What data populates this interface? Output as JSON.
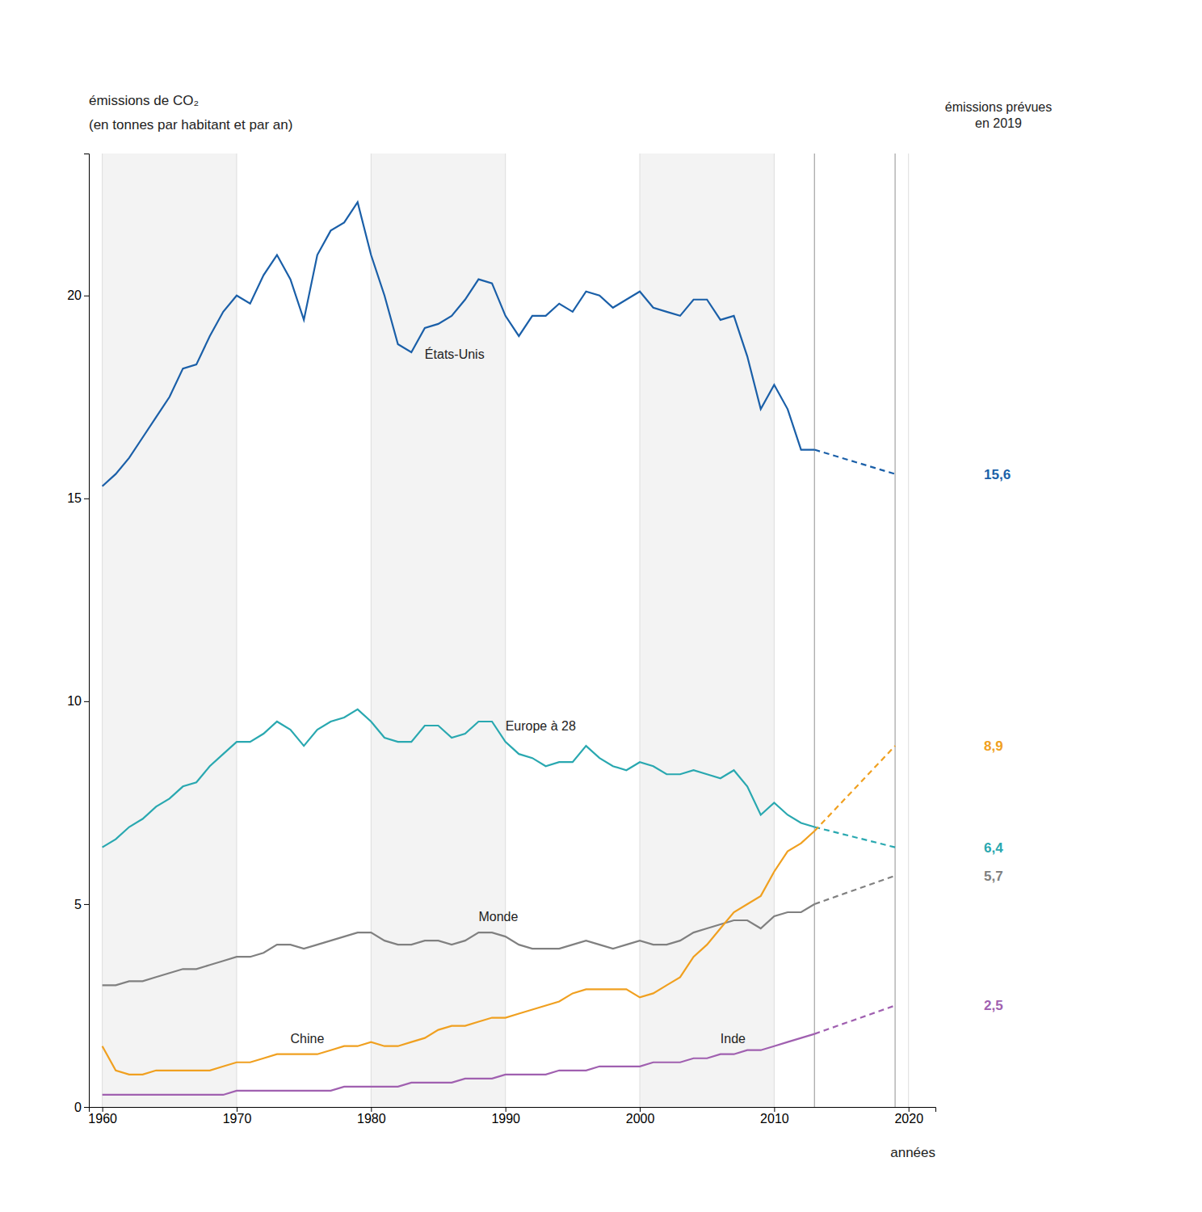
{
  "chart_data": {
    "type": "line",
    "ylabel": [
      "émissions de CO₂",
      "(en tonnes par habitant et par an)"
    ],
    "xlabel": "années",
    "annotation": "émissions prévues\nen 2019",
    "xlim": [
      1959,
      2022
    ],
    "xticks": [
      1960,
      1970,
      1980,
      1990,
      2000,
      2010,
      2020
    ],
    "ylim": [
      0,
      23.5
    ],
    "yticks": [
      0,
      5,
      10,
      15,
      20
    ],
    "grid": "x",
    "vlines": [
      2013,
      2019
    ],
    "x": [
      1960,
      1961,
      1962,
      1963,
      1964,
      1965,
      1966,
      1967,
      1968,
      1969,
      1970,
      1971,
      1972,
      1973,
      1974,
      1975,
      1976,
      1977,
      1978,
      1979,
      1980,
      1981,
      1982,
      1983,
      1984,
      1985,
      1986,
      1987,
      1988,
      1989,
      1990,
      1991,
      1992,
      1993,
      1994,
      1995,
      1996,
      1997,
      1998,
      1999,
      2000,
      2001,
      2002,
      2003,
      2004,
      2005,
      2006,
      2007,
      2008,
      2009,
      2010,
      2011,
      2012,
      2013
    ],
    "series": [
      {
        "name": "États-Unis",
        "color": "#1a5fa8",
        "values": [
          15.3,
          15.6,
          16.0,
          16.5,
          17.0,
          17.5,
          18.2,
          18.3,
          19.0,
          19.6,
          20.0,
          19.8,
          20.5,
          21.0,
          20.4,
          19.4,
          21.0,
          21.6,
          21.8,
          22.3,
          21.0,
          20.0,
          18.8,
          18.6,
          19.2,
          19.3,
          19.5,
          19.9,
          20.4,
          20.3,
          19.5,
          19.0,
          19.5,
          19.5,
          19.8,
          19.6,
          20.1,
          20.0,
          19.7,
          19.9,
          20.1,
          19.7,
          19.6,
          19.5,
          19.9,
          19.9,
          19.4,
          19.5,
          18.5,
          17.2,
          17.8,
          17.2,
          16.2,
          16.2
        ],
        "forecast": {
          "x": [
            2013,
            2019
          ],
          "values": [
            16.2,
            15.6
          ],
          "value_labels": [
            null,
            "15,6"
          ],
          "line_style": "dashed"
        }
      },
      {
        "name": "Europe à 28",
        "color": "#29a8b0",
        "values": [
          6.4,
          6.6,
          6.9,
          7.1,
          7.4,
          7.6,
          7.9,
          8.0,
          8.4,
          8.7,
          9.0,
          9.0,
          9.2,
          9.5,
          9.3,
          8.9,
          9.3,
          9.5,
          9.6,
          9.8,
          9.5,
          9.1,
          9.0,
          9.0,
          9.4,
          9.4,
          9.1,
          9.2,
          9.5,
          9.5,
          9.0,
          8.7,
          8.6,
          8.4,
          8.5,
          8.5,
          8.9,
          8.6,
          8.4,
          8.3,
          8.5,
          8.4,
          8.2,
          8.2,
          8.3,
          8.2,
          8.1,
          8.3,
          7.9,
          7.2,
          7.5,
          7.2,
          7.0,
          6.9
        ],
        "forecast": {
          "x": [
            2013,
            2019
          ],
          "values": [
            6.9,
            6.4
          ],
          "value_labels": [
            null,
            "6,4"
          ],
          "line_style": "dashed"
        }
      },
      {
        "name": "Monde",
        "color": "#808080",
        "values": [
          3.0,
          3.0,
          3.1,
          3.1,
          3.2,
          3.3,
          3.4,
          3.4,
          3.5,
          3.6,
          3.7,
          3.7,
          3.8,
          4.0,
          4.0,
          3.9,
          4.0,
          4.1,
          4.2,
          4.3,
          4.3,
          4.1,
          4.0,
          4.0,
          4.1,
          4.1,
          4.0,
          4.1,
          4.3,
          4.3,
          4.2,
          4.0,
          3.9,
          3.9,
          3.9,
          4.0,
          4.1,
          4.0,
          3.9,
          4.0,
          4.1,
          4.0,
          4.0,
          4.1,
          4.3,
          4.4,
          4.5,
          4.6,
          4.6,
          4.4,
          4.7,
          4.8,
          4.8,
          5.0
        ],
        "forecast": {
          "x": [
            2013,
            2019
          ],
          "values": [
            5.0,
            5.7
          ],
          "value_labels": [
            null,
            "5,7"
          ],
          "line_style": "dashed"
        }
      },
      {
        "name": "Chine",
        "color": "#f0a020",
        "values": [
          1.5,
          0.9,
          0.8,
          0.8,
          0.9,
          0.9,
          0.9,
          0.9,
          0.9,
          1.0,
          1.1,
          1.1,
          1.2,
          1.3,
          1.3,
          1.3,
          1.3,
          1.4,
          1.5,
          1.5,
          1.6,
          1.5,
          1.5,
          1.6,
          1.7,
          1.9,
          2.0,
          2.0,
          2.1,
          2.2,
          2.2,
          2.3,
          2.4,
          2.5,
          2.6,
          2.8,
          2.9,
          2.9,
          2.9,
          2.9,
          2.7,
          2.8,
          3.0,
          3.2,
          3.7,
          4.0,
          4.4,
          4.8,
          5.0,
          5.2,
          5.8,
          6.3,
          6.5,
          6.8
        ],
        "forecast": {
          "x": [
            2013,
            2019
          ],
          "values": [
            6.8,
            8.9
          ],
          "value_labels": [
            null,
            "8,9"
          ],
          "line_style": "dashed"
        }
      },
      {
        "name": "Inde",
        "color": "#a060b0",
        "values": [
          0.3,
          0.3,
          0.3,
          0.3,
          0.3,
          0.3,
          0.3,
          0.3,
          0.3,
          0.3,
          0.4,
          0.4,
          0.4,
          0.4,
          0.4,
          0.4,
          0.4,
          0.4,
          0.5,
          0.5,
          0.5,
          0.5,
          0.5,
          0.6,
          0.6,
          0.6,
          0.6,
          0.7,
          0.7,
          0.7,
          0.8,
          0.8,
          0.8,
          0.8,
          0.9,
          0.9,
          0.9,
          1.0,
          1.0,
          1.0,
          1.0,
          1.1,
          1.1,
          1.1,
          1.2,
          1.2,
          1.3,
          1.3,
          1.4,
          1.4,
          1.5,
          1.6,
          1.7,
          1.8
        ],
        "forecast": {
          "x": [
            2013,
            2019
          ],
          "values": [
            1.8,
            2.5
          ],
          "value_labels": [
            null,
            "2,5"
          ],
          "line_style": "dashed"
        }
      }
    ]
  }
}
